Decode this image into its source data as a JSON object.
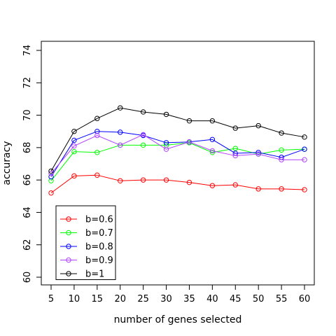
{
  "chart_data": {
    "type": "line",
    "xlabel": "number of genes selected",
    "ylabel": "accuracy",
    "x": [
      5,
      10,
      15,
      20,
      25,
      30,
      35,
      40,
      45,
      50,
      55,
      60
    ],
    "xlim": [
      5,
      60
    ],
    "ylim": [
      60,
      74
    ],
    "yticks": [
      60,
      62,
      64,
      66,
      68,
      70,
      72,
      74
    ],
    "grid": false,
    "legend_position": "bottom-left",
    "series": [
      {
        "name": "b=0.6",
        "color": "#ff0000",
        "values": [
          65.2,
          66.25,
          66.3,
          65.95,
          66.0,
          66.0,
          65.85,
          65.65,
          65.7,
          65.45,
          65.45,
          65.4
        ]
      },
      {
        "name": "b=0.7",
        "color": "#00ff00",
        "values": [
          65.95,
          67.75,
          67.7,
          68.15,
          68.15,
          68.15,
          68.3,
          67.7,
          67.95,
          67.6,
          67.85,
          67.9
        ]
      },
      {
        "name": "b=0.8",
        "color": "#0000ff",
        "values": [
          66.2,
          68.45,
          69.0,
          68.95,
          68.75,
          68.3,
          68.35,
          68.5,
          67.65,
          67.7,
          67.4,
          67.9
        ]
      },
      {
        "name": "b=0.9",
        "color": "#b040ff",
        "values": [
          66.4,
          68.1,
          68.75,
          68.15,
          68.8,
          67.9,
          68.35,
          67.8,
          67.5,
          67.6,
          67.25,
          67.25
        ]
      },
      {
        "name": "b=1",
        "color": "#000000",
        "values": [
          66.55,
          69.0,
          69.8,
          70.45,
          70.2,
          70.05,
          69.65,
          69.65,
          69.2,
          69.35,
          68.9,
          68.65
        ]
      }
    ]
  }
}
